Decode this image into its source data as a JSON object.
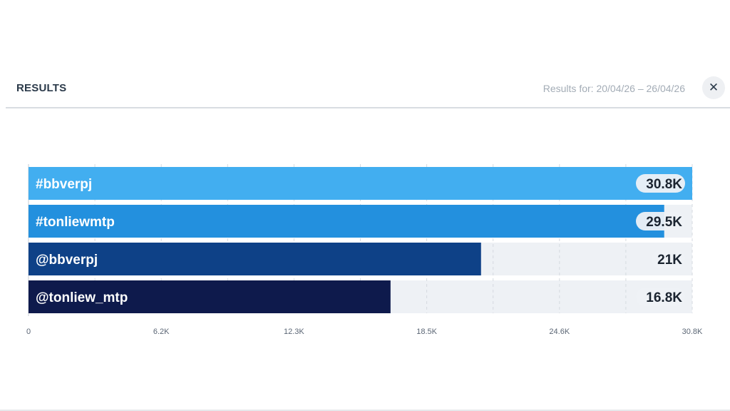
{
  "header": {
    "title": "RESULTS",
    "range_text": "Results for: 20/04/26 – 26/04/26",
    "close_icon": "close-icon"
  },
  "chart_data": {
    "type": "bar",
    "orientation": "horizontal",
    "categories": [
      "#bbverpj",
      "#tonliewmtp",
      "@bbverpj",
      "@tonliew_mtp"
    ],
    "values": [
      30800,
      29500,
      21000,
      16800
    ],
    "value_labels": [
      "30.8K",
      "29.5K",
      "21K",
      "16.8K"
    ],
    "colors": [
      "#42aef0",
      "#2390de",
      "#0e4187",
      "#0e1a4c"
    ],
    "track_color": "#eef1f5",
    "xlim": [
      0,
      30800
    ],
    "xticks": [
      0,
      6160,
      12320,
      18480,
      24640,
      30800
    ],
    "xtick_labels": [
      "0",
      "6.2K",
      "12.3K",
      "18.5K",
      "24.6K",
      "30.8K"
    ],
    "grid": true,
    "title": "",
    "xlabel": "",
    "ylabel": ""
  }
}
